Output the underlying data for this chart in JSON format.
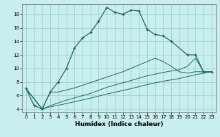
{
  "xlabel": "Humidex (Indice chaleur)",
  "bg_color": "#c8eef0",
  "grid_color": "#9ecfcf",
  "line_color": "#1a6655",
  "xlim": [
    -0.5,
    23.5
  ],
  "ylim": [
    3.5,
    19.5
  ],
  "xticks": [
    0,
    1,
    2,
    3,
    4,
    5,
    6,
    7,
    8,
    9,
    10,
    11,
    12,
    13,
    14,
    15,
    16,
    17,
    18,
    19,
    20,
    21,
    22,
    23
  ],
  "yticks": [
    4,
    6,
    8,
    10,
    12,
    14,
    16,
    18
  ],
  "line1_x": [
    0,
    1,
    2,
    3,
    4,
    5,
    6,
    7,
    8,
    9,
    10,
    11,
    12,
    13,
    14,
    15,
    16,
    17,
    18,
    20,
    21,
    22,
    23
  ],
  "line1_y": [
    7.0,
    4.5,
    4.0,
    6.5,
    8.0,
    10.0,
    13.0,
    14.5,
    15.3,
    17.0,
    19.0,
    18.3,
    18.0,
    18.6,
    18.5,
    15.8,
    15.0,
    14.8,
    14.0,
    12.0,
    12.0,
    9.5,
    9.5
  ],
  "line2_x": [
    0,
    2,
    3,
    4,
    5,
    6,
    7,
    8,
    9,
    10,
    11,
    12,
    13,
    14,
    15,
    16,
    17,
    18,
    19,
    20,
    21,
    22,
    23
  ],
  "line2_y": [
    7.0,
    4.0,
    6.5,
    6.5,
    6.8,
    7.1,
    7.5,
    7.9,
    8.3,
    8.7,
    9.1,
    9.5,
    10.0,
    10.5,
    11.0,
    11.5,
    11.0,
    10.3,
    9.5,
    9.3,
    9.5,
    9.5,
    9.5
  ],
  "line3_x": [
    0,
    2,
    3,
    5,
    8,
    10,
    13,
    15,
    17,
    19,
    20,
    21,
    22,
    23
  ],
  "line3_y": [
    7.0,
    4.0,
    4.5,
    5.3,
    6.3,
    7.2,
    8.2,
    8.9,
    9.4,
    9.8,
    10.3,
    11.5,
    9.5,
    9.5
  ],
  "line4_x": [
    0,
    2,
    3,
    5,
    8,
    10,
    13,
    15,
    17,
    19,
    20,
    22,
    23
  ],
  "line4_y": [
    7.0,
    4.0,
    4.3,
    4.8,
    5.6,
    6.2,
    7.0,
    7.6,
    8.1,
    8.5,
    8.8,
    9.3,
    9.5
  ]
}
